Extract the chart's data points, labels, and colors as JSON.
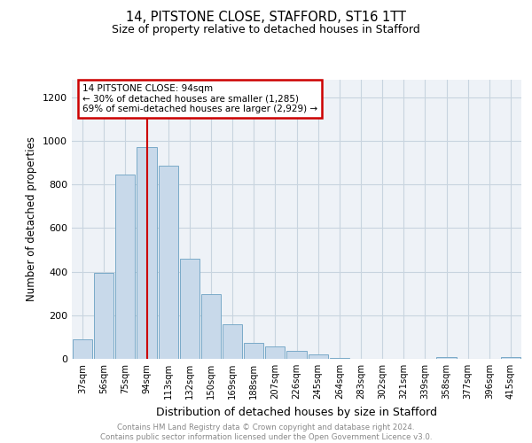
{
  "title1": "14, PITSTONE CLOSE, STAFFORD, ST16 1TT",
  "title2": "Size of property relative to detached houses in Stafford",
  "xlabel": "Distribution of detached houses by size in Stafford",
  "ylabel": "Number of detached properties",
  "categories": [
    "37sqm",
    "56sqm",
    "75sqm",
    "94sqm",
    "113sqm",
    "132sqm",
    "150sqm",
    "169sqm",
    "188sqm",
    "207sqm",
    "226sqm",
    "245sqm",
    "264sqm",
    "283sqm",
    "302sqm",
    "321sqm",
    "339sqm",
    "358sqm",
    "377sqm",
    "396sqm",
    "415sqm"
  ],
  "values": [
    90,
    395,
    845,
    970,
    885,
    460,
    295,
    160,
    75,
    55,
    35,
    20,
    5,
    0,
    0,
    0,
    0,
    10,
    0,
    0,
    10
  ],
  "bar_color": "#c8d9ea",
  "bar_edge_color": "#7aaac8",
  "red_line_index": 3,
  "annotation_text": "14 PITSTONE CLOSE: 94sqm\n← 30% of detached houses are smaller (1,285)\n69% of semi-detached houses are larger (2,929) →",
  "annotation_box_facecolor": "#ffffff",
  "annotation_box_edgecolor": "#cc0000",
  "ylim": [
    0,
    1280
  ],
  "yticks": [
    0,
    200,
    400,
    600,
    800,
    1000,
    1200
  ],
  "footer_text": "Contains HM Land Registry data © Crown copyright and database right 2024.\nContains public sector information licensed under the Open Government Licence v3.0.",
  "grid_color": "#c8d4df",
  "background_color": "#eef2f7"
}
